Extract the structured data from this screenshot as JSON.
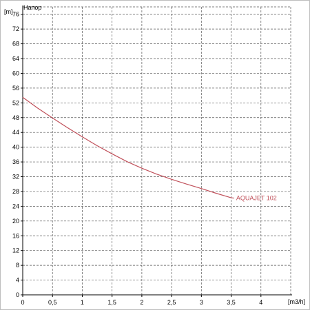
{
  "chart_data": {
    "type": "line",
    "title": "Напор",
    "xlabel": "[m3/h]",
    "ylabel": "[m]",
    "xlim": [
      0,
      4.5
    ],
    "ylim": [
      0,
      78
    ],
    "grid": true,
    "x_ticks": [
      0,
      0.5,
      1,
      1.5,
      2,
      2.5,
      3,
      3.5,
      4
    ],
    "x_tick_labels": [
      "0",
      "0,5",
      "1",
      "1,5",
      "2",
      "2,5",
      "3",
      "3,5",
      "4"
    ],
    "y_ticks": [
      0,
      4,
      8,
      12,
      16,
      20,
      24,
      28,
      32,
      36,
      40,
      44,
      48,
      52,
      56,
      60,
      64,
      68,
      72,
      76
    ],
    "y_tick_labels": [
      "0",
      "4",
      "8",
      "12",
      "16",
      "20",
      "24",
      "28",
      "32",
      "36",
      "40",
      "44",
      "48",
      "52",
      "56",
      "60",
      "64",
      "68",
      "72",
      "76"
    ],
    "series": [
      {
        "name": "AQUAJET 102",
        "color": "#c0505a",
        "x": [
          0,
          0.25,
          0.5,
          0.75,
          1,
          1.25,
          1.5,
          1.75,
          2,
          2.25,
          2.5,
          2.75,
          3,
          3.25,
          3.5,
          3.55
        ],
        "y": [
          53.5,
          50.6,
          47.9,
          45.3,
          42.8,
          40.4,
          38.2,
          36.1,
          34.3,
          32.7,
          31.3,
          30.0,
          28.8,
          27.5,
          26.3,
          26.2
        ]
      }
    ],
    "colors": {
      "grid": "#555555",
      "axis": "#000000",
      "frame": "#888888"
    }
  }
}
